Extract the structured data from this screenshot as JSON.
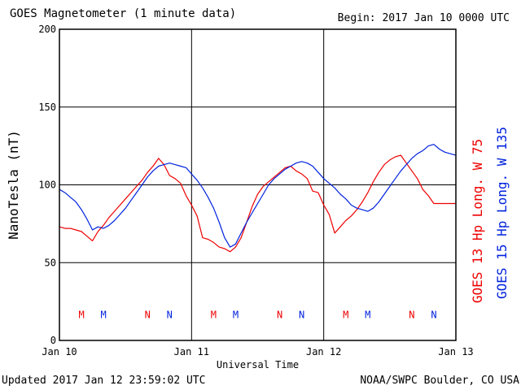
{
  "header": {
    "title": "GOES Magnetometer (1 minute data)",
    "begin": "Begin:  2017 Jan 10 0000 UTC"
  },
  "footer": {
    "updated": "Updated 2017 Jan 12 23:59:02 UTC",
    "source": "NOAA/SWPC Boulder, CO USA"
  },
  "colors": {
    "goes13": "#ee0000",
    "goes15": "#0022dd",
    "grid": "#000000"
  },
  "chart_data": {
    "type": "line",
    "ylabel": "NanoTesla (nT)",
    "xlabel": "Universal Time",
    "ylim": [
      0,
      200
    ],
    "yticks": [
      0,
      50,
      100,
      150,
      200
    ],
    "xlim": [
      "2017-01-10T00:00",
      "2017-01-13T00:00"
    ],
    "xticks": [
      {
        "t": "2017-01-10T00:00",
        "label": "Jan 10"
      },
      {
        "t": "2017-01-11T00:00",
        "label": "Jan 11"
      },
      {
        "t": "2017-01-12T00:00",
        "label": "Jan 12"
      },
      {
        "t": "2017-01-13T00:00",
        "label": "Jan 13"
      }
    ],
    "grid": true,
    "series": [
      {
        "name": "GOES 13 Hp  Long. W 75",
        "color": "#ee0000",
        "x": [
          "2017-01-10T00:00",
          "2017-01-10T01:00",
          "2017-01-10T02:00",
          "2017-01-10T03:00",
          "2017-01-10T04:00",
          "2017-01-10T05:00",
          "2017-01-10T06:00",
          "2017-01-10T07:00",
          "2017-01-10T08:00",
          "2017-01-10T09:00",
          "2017-01-10T10:00",
          "2017-01-10T11:00",
          "2017-01-10T12:00",
          "2017-01-10T13:00",
          "2017-01-10T14:00",
          "2017-01-10T15:00",
          "2017-01-10T16:00",
          "2017-01-10T17:00",
          "2017-01-10T18:00",
          "2017-01-10T19:00",
          "2017-01-10T20:00",
          "2017-01-10T21:00",
          "2017-01-10T22:00",
          "2017-01-10T23:00",
          "2017-01-11T00:00",
          "2017-01-11T01:00",
          "2017-01-11T02:00",
          "2017-01-11T03:00",
          "2017-01-11T04:00",
          "2017-01-11T05:00",
          "2017-01-11T06:00",
          "2017-01-11T07:00",
          "2017-01-11T08:00",
          "2017-01-11T09:00",
          "2017-01-11T10:00",
          "2017-01-11T11:00",
          "2017-01-11T12:00",
          "2017-01-11T13:00",
          "2017-01-11T14:00",
          "2017-01-11T15:00",
          "2017-01-11T16:00",
          "2017-01-11T17:00",
          "2017-01-11T18:00",
          "2017-01-11T19:00",
          "2017-01-11T20:00",
          "2017-01-11T21:00",
          "2017-01-11T22:00",
          "2017-01-11T23:00",
          "2017-01-12T00:00",
          "2017-01-12T01:00",
          "2017-01-12T02:00",
          "2017-01-12T03:00",
          "2017-01-12T04:00",
          "2017-01-12T05:00",
          "2017-01-12T06:00",
          "2017-01-12T07:00",
          "2017-01-12T08:00",
          "2017-01-12T09:00",
          "2017-01-12T10:00",
          "2017-01-12T11:00",
          "2017-01-12T12:00",
          "2017-01-12T13:00",
          "2017-01-12T14:00",
          "2017-01-12T15:00",
          "2017-01-12T16:00",
          "2017-01-12T17:00",
          "2017-01-12T18:00",
          "2017-01-12T19:00",
          "2017-01-12T20:00",
          "2017-01-12T21:00",
          "2017-01-12T22:00",
          "2017-01-12T23:00",
          "2017-01-12T23:59"
        ],
        "y": [
          73,
          72,
          72,
          71,
          70,
          67,
          64,
          70,
          74,
          79,
          83,
          87,
          91,
          95,
          99,
          103,
          108,
          112,
          117,
          113,
          106,
          104,
          101,
          93,
          87,
          80,
          66,
          65,
          63,
          60,
          59,
          57,
          60,
          66,
          76,
          86,
          94,
          99,
          102,
          105,
          108,
          111,
          112,
          109,
          107,
          104,
          96,
          95,
          87,
          81,
          69,
          73,
          77,
          80,
          84,
          89,
          95,
          102,
          108,
          113,
          116,
          118,
          119,
          114,
          109,
          104,
          97,
          93,
          88,
          88,
          88,
          88,
          88
        ]
      },
      {
        "name": "GOES 15 Hp  Long. W 135",
        "color": "#0022dd",
        "x": [
          "2017-01-10T00:00",
          "2017-01-10T01:00",
          "2017-01-10T02:00",
          "2017-01-10T03:00",
          "2017-01-10T04:00",
          "2017-01-10T05:00",
          "2017-01-10T06:00",
          "2017-01-10T07:00",
          "2017-01-10T08:00",
          "2017-01-10T09:00",
          "2017-01-10T10:00",
          "2017-01-10T11:00",
          "2017-01-10T12:00",
          "2017-01-10T13:00",
          "2017-01-10T14:00",
          "2017-01-10T15:00",
          "2017-01-10T16:00",
          "2017-01-10T17:00",
          "2017-01-10T18:00",
          "2017-01-10T19:00",
          "2017-01-10T20:00",
          "2017-01-10T21:00",
          "2017-01-10T22:00",
          "2017-01-10T23:00",
          "2017-01-11T00:00",
          "2017-01-11T01:00",
          "2017-01-11T02:00",
          "2017-01-11T03:00",
          "2017-01-11T04:00",
          "2017-01-11T05:00",
          "2017-01-11T06:00",
          "2017-01-11T07:00",
          "2017-01-11T08:00",
          "2017-01-11T09:00",
          "2017-01-11T10:00",
          "2017-01-11T11:00",
          "2017-01-11T12:00",
          "2017-01-11T13:00",
          "2017-01-11T14:00",
          "2017-01-11T15:00",
          "2017-01-11T16:00",
          "2017-01-11T17:00",
          "2017-01-11T18:00",
          "2017-01-11T19:00",
          "2017-01-11T20:00",
          "2017-01-11T21:00",
          "2017-01-11T22:00",
          "2017-01-11T23:00",
          "2017-01-12T00:00",
          "2017-01-12T01:00",
          "2017-01-12T02:00",
          "2017-01-12T03:00",
          "2017-01-12T04:00",
          "2017-01-12T05:00",
          "2017-01-12T06:00",
          "2017-01-12T07:00",
          "2017-01-12T08:00",
          "2017-01-12T09:00",
          "2017-01-12T10:00",
          "2017-01-12T11:00",
          "2017-01-12T12:00",
          "2017-01-12T13:00",
          "2017-01-12T14:00",
          "2017-01-12T15:00",
          "2017-01-12T16:00",
          "2017-01-12T17:00",
          "2017-01-12T18:00",
          "2017-01-12T19:00",
          "2017-01-12T20:00",
          "2017-01-12T21:00",
          "2017-01-12T22:00",
          "2017-01-12T23:00",
          "2017-01-12T23:59"
        ],
        "y": [
          97,
          95,
          92,
          89,
          84,
          78,
          71,
          73,
          72,
          74,
          77,
          81,
          85,
          90,
          95,
          100,
          105,
          109,
          112,
          113,
          114,
          113,
          112,
          111,
          107,
          103,
          98,
          92,
          85,
          76,
          66,
          60,
          62,
          69,
          76,
          82,
          88,
          94,
          100,
          104,
          107,
          110,
          112,
          114,
          115,
          114,
          112,
          108,
          104,
          101,
          98,
          94,
          91,
          87,
          85,
          84,
          83,
          85,
          89,
          94,
          99,
          104,
          109,
          113,
          117,
          120,
          122,
          125,
          126,
          123,
          121,
          120,
          119
        ]
      }
    ],
    "markers": [
      {
        "label": "M",
        "t": "2017-01-10T04:00",
        "series": 0
      },
      {
        "label": "M",
        "t": "2017-01-10T08:00",
        "series": 1
      },
      {
        "label": "N",
        "t": "2017-01-10T16:00",
        "series": 0
      },
      {
        "label": "N",
        "t": "2017-01-10T20:00",
        "series": 1
      },
      {
        "label": "M",
        "t": "2017-01-11T04:00",
        "series": 0
      },
      {
        "label": "M",
        "t": "2017-01-11T08:00",
        "series": 1
      },
      {
        "label": "N",
        "t": "2017-01-11T16:00",
        "series": 0
      },
      {
        "label": "N",
        "t": "2017-01-11T20:00",
        "series": 1
      },
      {
        "label": "M",
        "t": "2017-01-12T04:00",
        "series": 0
      },
      {
        "label": "M",
        "t": "2017-01-12T08:00",
        "series": 1
      },
      {
        "label": "N",
        "t": "2017-01-12T16:00",
        "series": 0
      },
      {
        "label": "N",
        "t": "2017-01-12T20:00",
        "series": 1
      }
    ],
    "marker_level": 17
  }
}
